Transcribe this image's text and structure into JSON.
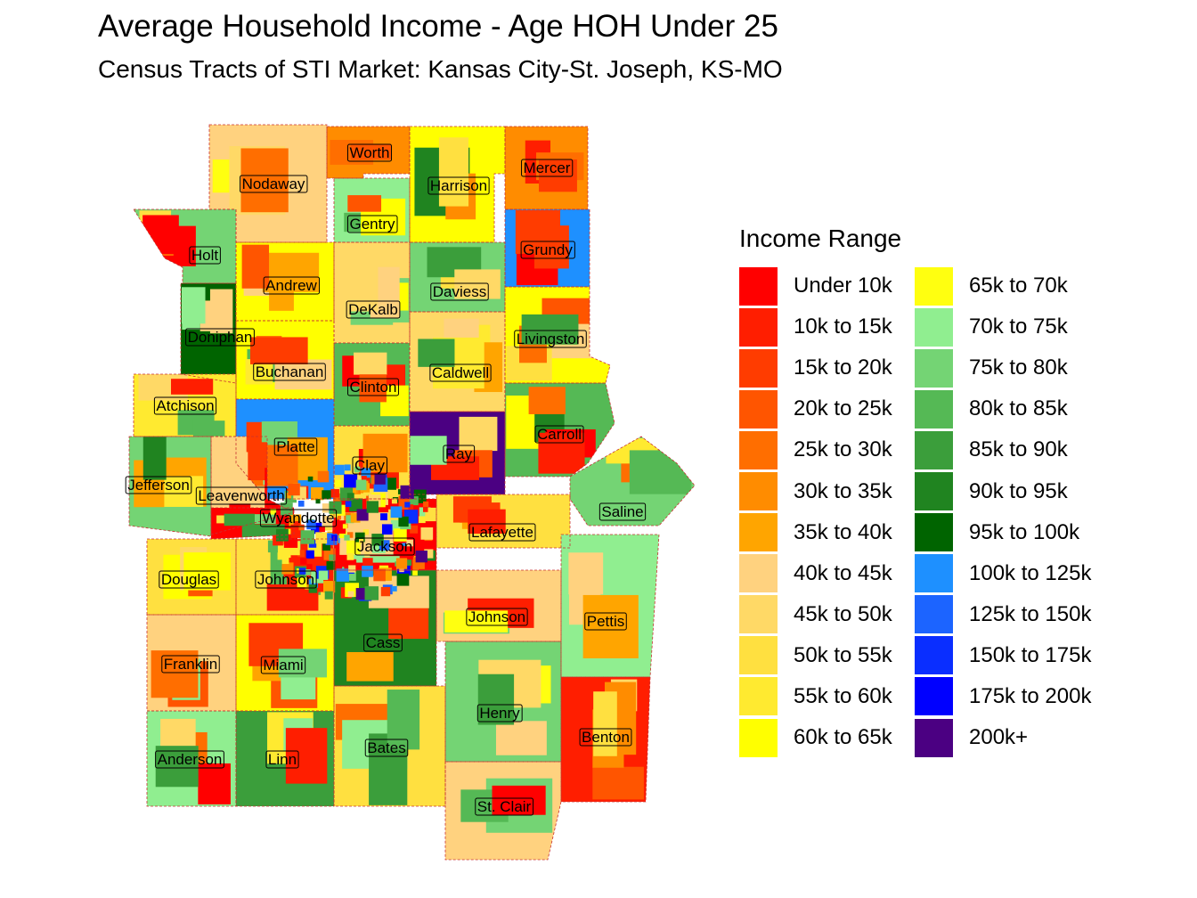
{
  "title": "Average Household Income - Age HOH Under 25",
  "subtitle": "Census Tracts of STI Market: Kansas City-St. Joseph, KS-MO",
  "legend": {
    "title": "Income Range",
    "items": [
      {
        "label": "Under 10k",
        "color": "#ff0000"
      },
      {
        "label": "10k to 15k",
        "color": "#ff1e00"
      },
      {
        "label": "15k to 20k",
        "color": "#ff3c00"
      },
      {
        "label": "20k to 25k",
        "color": "#ff5500"
      },
      {
        "label": "25k to 30k",
        "color": "#ff6e00"
      },
      {
        "label": "30k to 35k",
        "color": "#ff8c00"
      },
      {
        "label": "35k to 40k",
        "color": "#ffa500"
      },
      {
        "label": "40k to 45k",
        "color": "#ffd27f"
      },
      {
        "label": "45k to 50k",
        "color": "#ffd966"
      },
      {
        "label": "50k to 55k",
        "color": "#ffe040"
      },
      {
        "label": "55k to 60k",
        "color": "#ffea30"
      },
      {
        "label": "60k to 65k",
        "color": "#ffff00"
      },
      {
        "label": "65k to 70k",
        "color": "#ffff10"
      },
      {
        "label": "70k to 75k",
        "color": "#90ee90"
      },
      {
        "label": "75k to 80k",
        "color": "#74d474"
      },
      {
        "label": "80k to 85k",
        "color": "#55b955"
      },
      {
        "label": "85k to 90k",
        "color": "#3b9e3b"
      },
      {
        "label": "90k to 95k",
        "color": "#208420"
      },
      {
        "label": "95k to 100k",
        "color": "#006400"
      },
      {
        "label": "100k to 125k",
        "color": "#1e90ff"
      },
      {
        "label": "125k to 150k",
        "color": "#1c64ff"
      },
      {
        "label": "150k to 175k",
        "color": "#0a2eff"
      },
      {
        "label": "175k to 200k",
        "color": "#0000ff"
      },
      {
        "label": "200k+",
        "color": "#4b0082"
      }
    ]
  },
  "counties": [
    {
      "name": "Worth",
      "color": "#ff8c00"
    },
    {
      "name": "Harrison",
      "color": "#ffff00"
    },
    {
      "name": "Mercer",
      "color": "#ff8c00"
    },
    {
      "name": "Nodaway",
      "color": "#ffd27f"
    },
    {
      "name": "Gentry",
      "color": "#90ee90"
    },
    {
      "name": "Grundy",
      "color": "#1e90ff"
    },
    {
      "name": "Holt",
      "color": "#74d474"
    },
    {
      "name": "Andrew",
      "color": "#ffff00"
    },
    {
      "name": "Daviess",
      "color": "#74d474"
    },
    {
      "name": "DeKalb",
      "color": "#ffd966"
    },
    {
      "name": "Livingston",
      "color": "#ffff00"
    },
    {
      "name": "Doniphan",
      "color": "#006400"
    },
    {
      "name": "Buchanan",
      "color": "#ffff00"
    },
    {
      "name": "Caldwell",
      "color": "#ffd966"
    },
    {
      "name": "Clinton",
      "color": "#55b955"
    },
    {
      "name": "Atchison",
      "color": "#ffea30"
    },
    {
      "name": "Carroll",
      "color": "#55b955"
    },
    {
      "name": "Platte",
      "color": "#1e90ff"
    },
    {
      "name": "Ray",
      "color": "#4b0082"
    },
    {
      "name": "Clay",
      "color": "#ffe040"
    },
    {
      "name": "Jefferson",
      "color": "#74d474"
    },
    {
      "name": "Leavenworth",
      "color": "#ffd27f"
    },
    {
      "name": "Saline",
      "color": "#74d474"
    },
    {
      "name": "Wyandotte",
      "color": "#ff0000"
    },
    {
      "name": "Jackson",
      "color": "#ff0000"
    },
    {
      "name": "Lafayette",
      "color": "#ffe040"
    },
    {
      "name": "Douglas",
      "color": "#ffe040"
    },
    {
      "name": "Johnson",
      "color": "#ffe040"
    },
    {
      "name": "Johnson",
      "color": "#ffd27f"
    },
    {
      "name": "Pettis",
      "color": "#90ee90"
    },
    {
      "name": "Cass",
      "color": "#208420"
    },
    {
      "name": "Franklin",
      "color": "#ffd27f"
    },
    {
      "name": "Miami",
      "color": "#ffff00"
    },
    {
      "name": "Henry",
      "color": "#74d474"
    },
    {
      "name": "Benton",
      "color": "#ff1e00"
    },
    {
      "name": "Bates",
      "color": "#ffe040"
    },
    {
      "name": "Anderson",
      "color": "#90ee90"
    },
    {
      "name": "Linn",
      "color": "#3b9e3b"
    },
    {
      "name": "St. Clair",
      "color": "#ffd27f"
    }
  ]
}
